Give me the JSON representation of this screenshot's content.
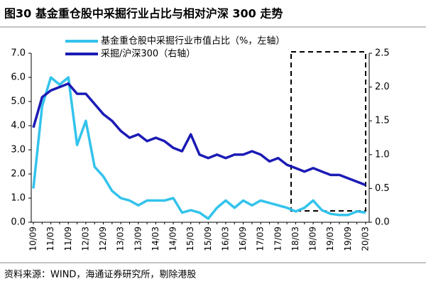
{
  "chart_data": {
    "type": "line",
    "title": "图30 基金重仓股中采掘行业占比与相对沪深 300 走势",
    "source": "资料来源：WIND，海通证券研究所，剔除港股",
    "categories": [
      "10/09",
      null,
      "11/03",
      null,
      "11/09",
      null,
      "12/03",
      null,
      "12/09",
      null,
      "13/03",
      null,
      "13/09",
      null,
      "14/03",
      null,
      "14/09",
      null,
      "15/03",
      null,
      "15/09",
      null,
      "16/03",
      null,
      "16/09",
      null,
      "17/03",
      null,
      "17/09",
      null,
      "18/03",
      null,
      "18/09",
      null,
      "19/03",
      null,
      "19/09",
      null,
      "20/03"
    ],
    "series": [
      {
        "name": "基金重仓股中采掘行业市值占比（%，左轴）",
        "color": "#33c3ec",
        "axis": "y",
        "values": [
          1.4,
          4.8,
          6.0,
          5.7,
          6.0,
          3.2,
          4.2,
          2.3,
          1.9,
          1.3,
          1.0,
          0.9,
          0.7,
          0.9,
          0.9,
          0.9,
          1.0,
          0.4,
          0.5,
          0.4,
          0.15,
          0.6,
          0.9,
          0.6,
          0.9,
          0.7,
          0.9,
          0.8,
          0.7,
          0.6,
          0.45,
          0.6,
          0.9,
          0.5,
          0.35,
          0.3,
          0.3,
          0.45,
          0.4
        ]
      },
      {
        "name": "采掘/沪深300（右轴）",
        "color": "#1b1bb5",
        "axis": "y2",
        "values": [
          1.4,
          1.85,
          1.95,
          2.0,
          2.05,
          1.9,
          1.9,
          1.75,
          1.6,
          1.5,
          1.35,
          1.25,
          1.3,
          1.2,
          1.25,
          1.2,
          1.1,
          1.05,
          1.3,
          1.0,
          0.95,
          1.0,
          0.95,
          1.0,
          1.0,
          1.05,
          1.0,
          0.9,
          0.95,
          0.85,
          0.8,
          0.75,
          0.8,
          0.75,
          0.7,
          0.7,
          0.65,
          0.6,
          0.55
        ]
      }
    ],
    "ylim": [
      0,
      7
    ],
    "yticks": [
      {
        "value": 0,
        "label": "0.0"
      },
      {
        "value": 1,
        "label": "1.0"
      },
      {
        "value": 2,
        "label": "2.0"
      },
      {
        "value": 3,
        "label": "3.0"
      },
      {
        "value": 4,
        "label": "4.0"
      },
      {
        "value": 5,
        "label": "5.0"
      },
      {
        "value": 6,
        "label": "6.0"
      },
      {
        "value": 7,
        "label": "7.0"
      }
    ],
    "y2lim": [
      0,
      2.5
    ],
    "y2ticks": [
      {
        "value": 0,
        "label": "0.0"
      },
      0.5,
      {
        "value": 1,
        "label": "1.0"
      },
      1.5,
      {
        "value": 2,
        "label": "2.0"
      },
      2.5
    ]
  }
}
